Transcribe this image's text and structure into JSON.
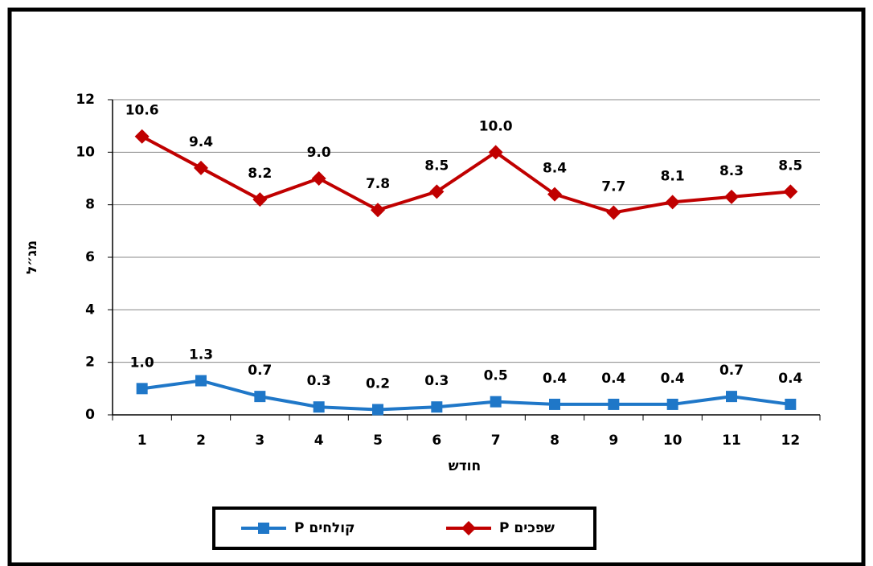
{
  "chart_data": {
    "type": "line",
    "y_label": "מג״ל",
    "x_label": "חודש",
    "categories": [
      1,
      2,
      3,
      4,
      5,
      6,
      7,
      8,
      9,
      10,
      11,
      12
    ],
    "series": [
      {
        "name": "P שפכים",
        "color": "#c00000",
        "marker": "diamond",
        "values": [
          10.6,
          9.4,
          8.2,
          9.0,
          7.8,
          8.5,
          10.0,
          8.4,
          7.7,
          8.1,
          8.3,
          8.5
        ],
        "value_labels": [
          "10.6",
          "9.4",
          "8.2",
          "9.0",
          "7.8",
          "8.5",
          "10.0",
          "8.4",
          "7.7",
          "8.1",
          "8.3",
          "8.5"
        ]
      },
      {
        "name": "P קולחים",
        "color": "#1f77c8",
        "marker": "square",
        "values": [
          1.0,
          1.3,
          0.7,
          0.3,
          0.2,
          0.3,
          0.5,
          0.4,
          0.4,
          0.4,
          0.7,
          0.4
        ],
        "value_labels": [
          "1.0",
          "1.3",
          "0.7",
          "0.3",
          "0.2",
          "0.3",
          "0.5",
          "0.4",
          "0.4",
          "0.4",
          "0.7",
          "0.4"
        ]
      }
    ],
    "ylim": [
      0,
      12
    ],
    "yticks": [
      0,
      2,
      4,
      6,
      8,
      10,
      12
    ],
    "grid": true,
    "legend": "bottom"
  }
}
